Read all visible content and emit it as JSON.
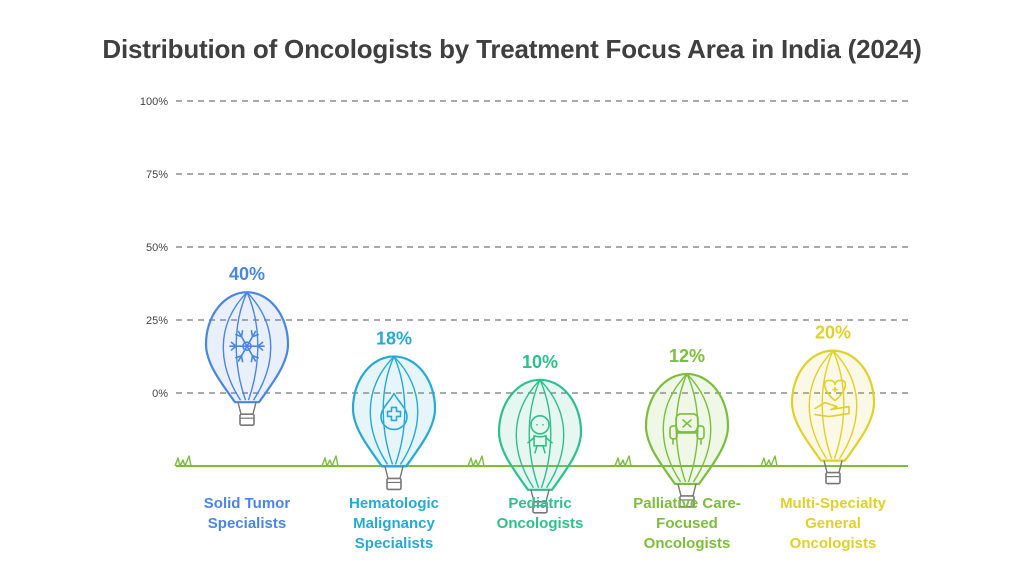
{
  "title": "Distribution of Oncologists by Treatment Focus Area in India (2024)",
  "chart_data": {
    "type": "bar",
    "title": "Distribution of Oncologists by Treatment Focus Area in India (2024)",
    "categories": [
      "Solid Tumor\nSpecialists",
      "Hematologic\nMalignancy\nSpecialists",
      "Pediatric\nOncologists",
      "Palliative Care-\nFocused\nOncologists",
      "Multi-Specialty\nGeneral\nOncologists"
    ],
    "values": [
      40,
      18,
      10,
      12,
      20
    ],
    "value_labels": [
      "40%",
      "18%",
      "10%",
      "12%",
      "20%"
    ],
    "ylim": [
      0,
      100
    ],
    "yticks": [
      0,
      25,
      50,
      75,
      100
    ],
    "ytick_labels": [
      "0%",
      "25%",
      "50%",
      "75%",
      "100%"
    ],
    "grid": true,
    "colors": [
      "#4a86e0",
      "#26a9d2",
      "#2ebf8c",
      "#7cbd3c",
      "#e0d02a"
    ],
    "icons": [
      "snowflake-icon",
      "blood-drop-cross-icon",
      "child-figure-icon",
      "armchair-icon",
      "hand-heart-icon"
    ]
  }
}
